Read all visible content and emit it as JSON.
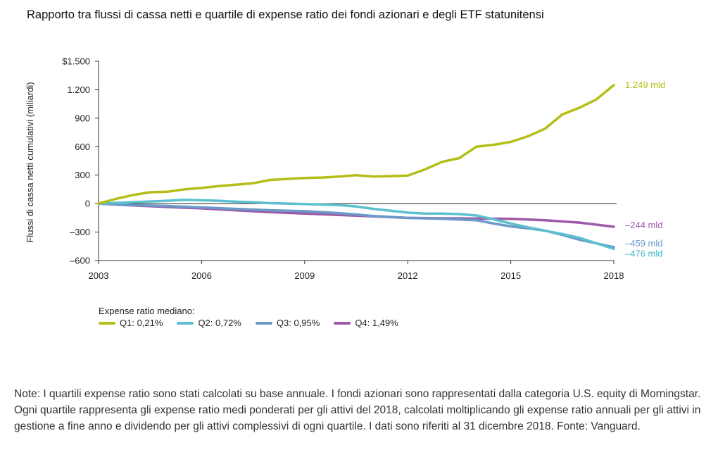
{
  "title": "Rapporto tra flussi di cassa netti e quartile di expense ratio dei fondi azionari e degli ETF statunitensi",
  "notes": "Note: I quartili expense ratio sono stati calcolati su base annuale. I fondi azionari sono rappresentati dalla categoria U.S. equity di Morningstar. Ogni quartile rappresenta gli expense ratio medi ponderati per gli attivi del 2018, calcolati moltiplicando gli expense ratio annuali per gli attivi in gestione a fine anno e dividendo per gli attivi complessivi di ogni quartile. I dati sono riferiti al 31 dicembre 2018. Fonte: Vanguard.",
  "chart_data": {
    "type": "line",
    "title": "Rapporto tra flussi di cassa netti e quartile di expense ratio dei fondi azionari e degli ETF statunitensi",
    "xlabel": "",
    "ylabel": "Flussi di cassa netti cumulativi (miliardi)",
    "xlim": [
      2003,
      2018
    ],
    "ylim": [
      -600,
      1500
    ],
    "x_ticks": [
      {
        "value": 2003,
        "label": "2003"
      },
      {
        "value": 2006,
        "label": "2006"
      },
      {
        "value": 2009,
        "label": "2009"
      },
      {
        "value": 2012,
        "label": "2012"
      },
      {
        "value": 2015,
        "label": "2015"
      },
      {
        "value": 2018,
        "label": "2018"
      }
    ],
    "y_ticks": [
      {
        "value": 1500,
        "label": "$1.500"
      },
      {
        "value": 1200,
        "label": "1.200"
      },
      {
        "value": 900,
        "label": "900"
      },
      {
        "value": 600,
        "label": "600"
      },
      {
        "value": 300,
        "label": "300"
      },
      {
        "value": 0,
        "label": "0"
      },
      {
        "value": -300,
        "label": "–300"
      },
      {
        "value": -600,
        "label": "–600"
      }
    ],
    "grid": false,
    "zero_line": true,
    "legend_title": "Expense ratio mediano:",
    "legend_position": "bottom-left",
    "series": [
      {
        "name": "Q1: 0,21%",
        "color": "#b5bd17",
        "end_label": "1.249 mld",
        "end_label_color": "#b5bd17",
        "points": [
          [
            2003,
            0
          ],
          [
            2003.5,
            50
          ],
          [
            2004,
            90
          ],
          [
            2004.5,
            120
          ],
          [
            2005,
            125
          ],
          [
            2005.5,
            150
          ],
          [
            2006,
            165
          ],
          [
            2006.5,
            185
          ],
          [
            2007,
            200
          ],
          [
            2007.5,
            215
          ],
          [
            2008,
            250
          ],
          [
            2008.5,
            260
          ],
          [
            2009,
            270
          ],
          [
            2009.5,
            275
          ],
          [
            2010,
            285
          ],
          [
            2010.5,
            300
          ],
          [
            2011,
            285
          ],
          [
            2011.5,
            290
          ],
          [
            2012,
            295
          ],
          [
            2012.5,
            360
          ],
          [
            2013,
            440
          ],
          [
            2013.5,
            480
          ],
          [
            2014,
            600
          ],
          [
            2014.5,
            620
          ],
          [
            2015,
            650
          ],
          [
            2015.5,
            710
          ],
          [
            2016,
            790
          ],
          [
            2016.5,
            940
          ],
          [
            2017,
            1010
          ],
          [
            2017.5,
            1100
          ],
          [
            2018,
            1249
          ]
        ]
      },
      {
        "name": "Q2: 0,72%",
        "color": "#5bc0cf",
        "end_label": "–476 mld",
        "end_label_color": "#3fb7c8",
        "points": [
          [
            2003,
            0
          ],
          [
            2004,
            15
          ],
          [
            2005,
            30
          ],
          [
            2005.5,
            40
          ],
          [
            2006,
            35
          ],
          [
            2006.5,
            30
          ],
          [
            2007,
            20
          ],
          [
            2007.5,
            15
          ],
          [
            2008,
            5
          ],
          [
            2008.5,
            0
          ],
          [
            2009,
            -5
          ],
          [
            2009.5,
            -10
          ],
          [
            2010,
            -15
          ],
          [
            2010.5,
            -30
          ],
          [
            2011,
            -55
          ],
          [
            2011.5,
            -75
          ],
          [
            2012,
            -95
          ],
          [
            2012.5,
            -105
          ],
          [
            2013,
            -105
          ],
          [
            2013.5,
            -110
          ],
          [
            2014,
            -125
          ],
          [
            2014.5,
            -165
          ],
          [
            2015,
            -210
          ],
          [
            2015.5,
            -250
          ],
          [
            2016,
            -285
          ],
          [
            2016.5,
            -320
          ],
          [
            2017,
            -360
          ],
          [
            2017.5,
            -420
          ],
          [
            2018,
            -476
          ]
        ]
      },
      {
        "name": "Q3: 0,95%",
        "color": "#6b9ac9",
        "end_label": "–459 mld",
        "end_label_color": "#6b9ac9",
        "points": [
          [
            2003,
            0
          ],
          [
            2004,
            -15
          ],
          [
            2005,
            -25
          ],
          [
            2006,
            -40
          ],
          [
            2007,
            -55
          ],
          [
            2008,
            -70
          ],
          [
            2009,
            -80
          ],
          [
            2010,
            -100
          ],
          [
            2011,
            -130
          ],
          [
            2012,
            -150
          ],
          [
            2013,
            -160
          ],
          [
            2014,
            -175
          ],
          [
            2014.5,
            -210
          ],
          [
            2015,
            -240
          ],
          [
            2015.5,
            -260
          ],
          [
            2016,
            -285
          ],
          [
            2016.5,
            -330
          ],
          [
            2017,
            -380
          ],
          [
            2017.5,
            -420
          ],
          [
            2018,
            -459
          ]
        ]
      },
      {
        "name": "Q4: 1,49%",
        "color": "#9c5aa8",
        "end_label": "–244 mld",
        "end_label_color": "#9c5aa8",
        "points": [
          [
            2003,
            0
          ],
          [
            2004,
            -20
          ],
          [
            2005,
            -35
          ],
          [
            2006,
            -50
          ],
          [
            2007,
            -70
          ],
          [
            2008,
            -90
          ],
          [
            2009,
            -105
          ],
          [
            2010,
            -120
          ],
          [
            2011,
            -135
          ],
          [
            2012,
            -150
          ],
          [
            2013,
            -155
          ],
          [
            2014,
            -158
          ],
          [
            2015,
            -160
          ],
          [
            2016,
            -175
          ],
          [
            2017,
            -200
          ],
          [
            2018,
            -244
          ]
        ]
      }
    ]
  }
}
